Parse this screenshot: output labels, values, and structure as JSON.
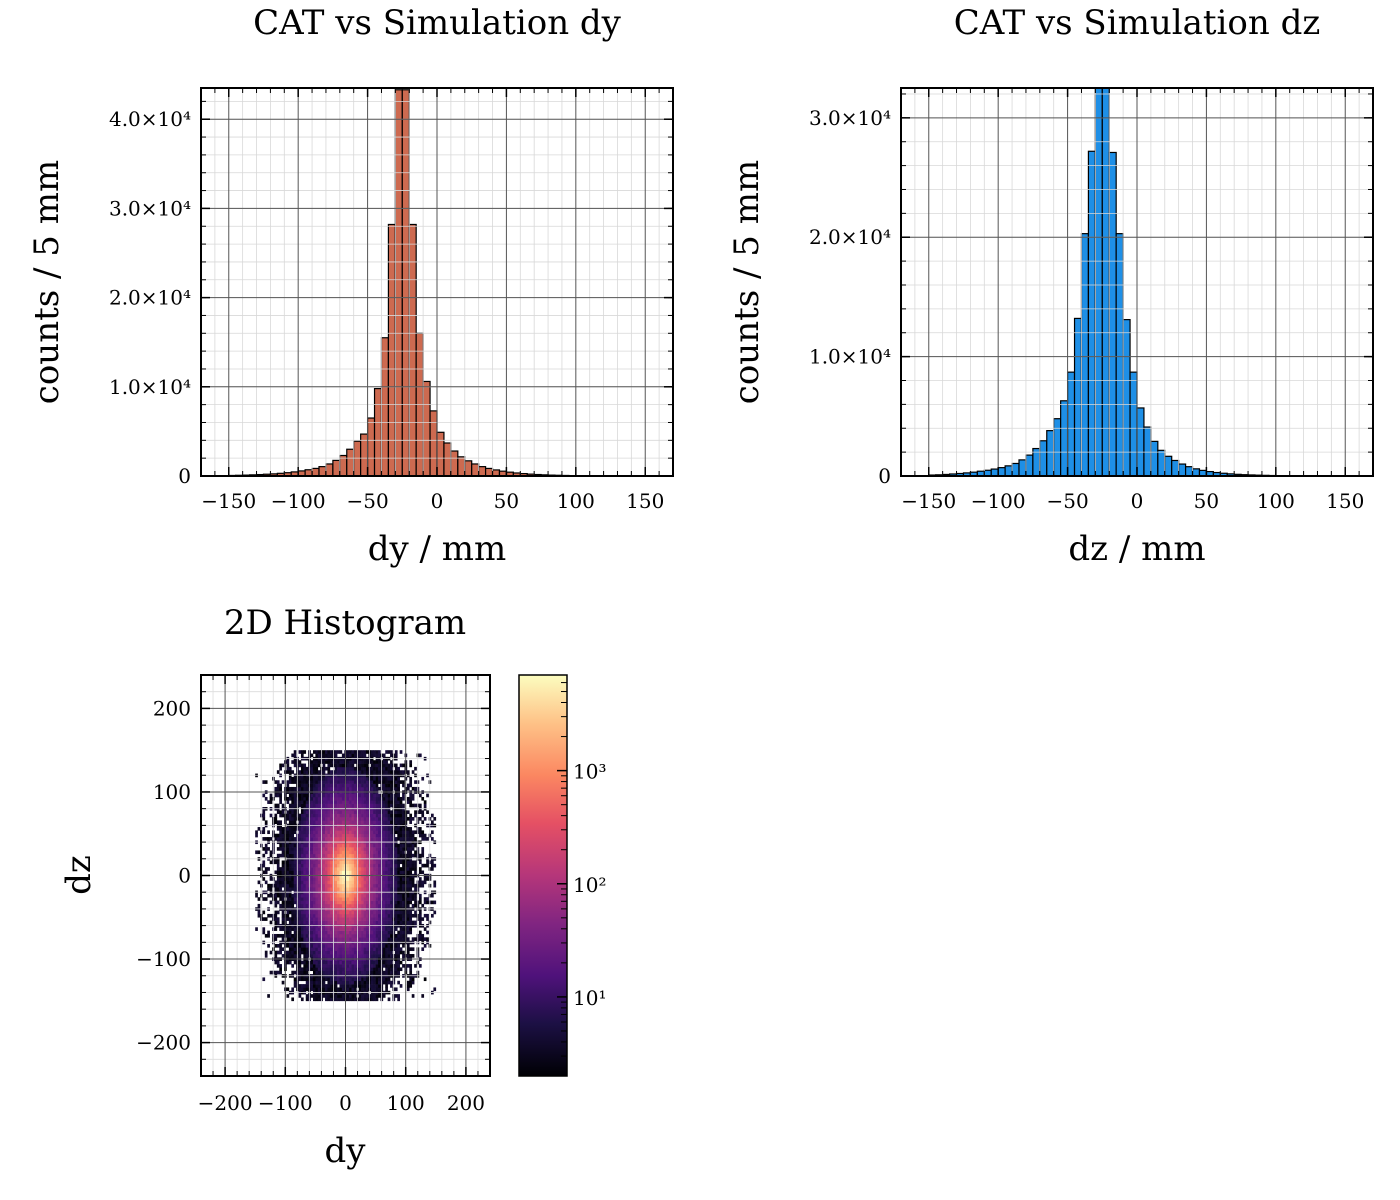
{
  "chart_data": [
    {
      "type": "bar",
      "title": "CAT vs Simulation dy",
      "xlabel": "dy / mm",
      "ylabel": "counts / 5 mm",
      "xlim": [
        -170,
        170
      ],
      "ylim": [
        0,
        43500
      ],
      "xticks": [
        "−150",
        "−100",
        "−50",
        "0",
        "50",
        "100",
        "150"
      ],
      "yticks": [
        "0",
        "1.0×10⁴",
        "2.0×10⁴",
        "3.0×10⁴",
        "4.0×10⁴"
      ],
      "bar_color": "#cd6a50",
      "grid": true,
      "bins": {
        "start": -150,
        "width": 5
      },
      "values": [
        60,
        80,
        100,
        130,
        160,
        200,
        240,
        300,
        370,
        460,
        570,
        700,
        850,
        1050,
        1350,
        1750,
        2300,
        3000,
        3900,
        4700,
        6500,
        9800,
        15500,
        28200,
        43300,
        43300,
        28200,
        16000,
        10600,
        7300,
        4900,
        3700,
        2800,
        2150,
        1700,
        1350,
        1050,
        850,
        680,
        540,
        430,
        340,
        270,
        210,
        165,
        130,
        100,
        80,
        60,
        45
      ]
    },
    {
      "type": "bar",
      "title": "CAT vs Simulation dz",
      "xlabel": "dz / mm",
      "ylabel": "counts / 5 mm",
      "xlim": [
        -170,
        170
      ],
      "ylim": [
        0,
        32500
      ],
      "xticks": [
        "−150",
        "−100",
        "−50",
        "0",
        "50",
        "100",
        "150"
      ],
      "yticks": [
        "0",
        "1.0×10⁴",
        "2.0×10⁴",
        "3.0×10⁴"
      ],
      "bar_color": "#1e8fe6",
      "grid": true,
      "bins": {
        "start": -150,
        "width": 5
      },
      "values": [
        80,
        100,
        130,
        170,
        210,
        260,
        320,
        400,
        480,
        580,
        700,
        850,
        1050,
        1350,
        1750,
        2300,
        2950,
        3800,
        4800,
        6300,
        8700,
        13200,
        20300,
        27200,
        32500,
        32500,
        27100,
        20300,
        13100,
        8700,
        5700,
        4100,
        2900,
        2150,
        1650,
        1300,
        1000,
        780,
        600,
        470,
        370,
        290,
        230,
        180,
        140,
        110,
        90,
        70,
        55,
        40
      ]
    },
    {
      "type": "heatmap",
      "title": "2D Histogram",
      "xlabel": "dy",
      "ylabel": "dz",
      "xlim": [
        -240,
        240
      ],
      "ylim": [
        -240,
        240
      ],
      "xticks": [
        "−200",
        "−100",
        "0",
        "100",
        "200"
      ],
      "yticks": [
        "−200",
        "−100",
        "0",
        "100",
        "200"
      ],
      "colorscale": "magma",
      "log_color": true,
      "color_range": [
        2,
        7000
      ],
      "colorbar_ticks": [
        "10¹",
        "10²",
        "10³"
      ],
      "grid": true,
      "peak_counts": 7000,
      "core_sigma": {
        "dy": 12,
        "dz": 18
      },
      "support": {
        "dy": [
          -150,
          150
        ],
        "dz": [
          -150,
          150
        ]
      }
    }
  ]
}
